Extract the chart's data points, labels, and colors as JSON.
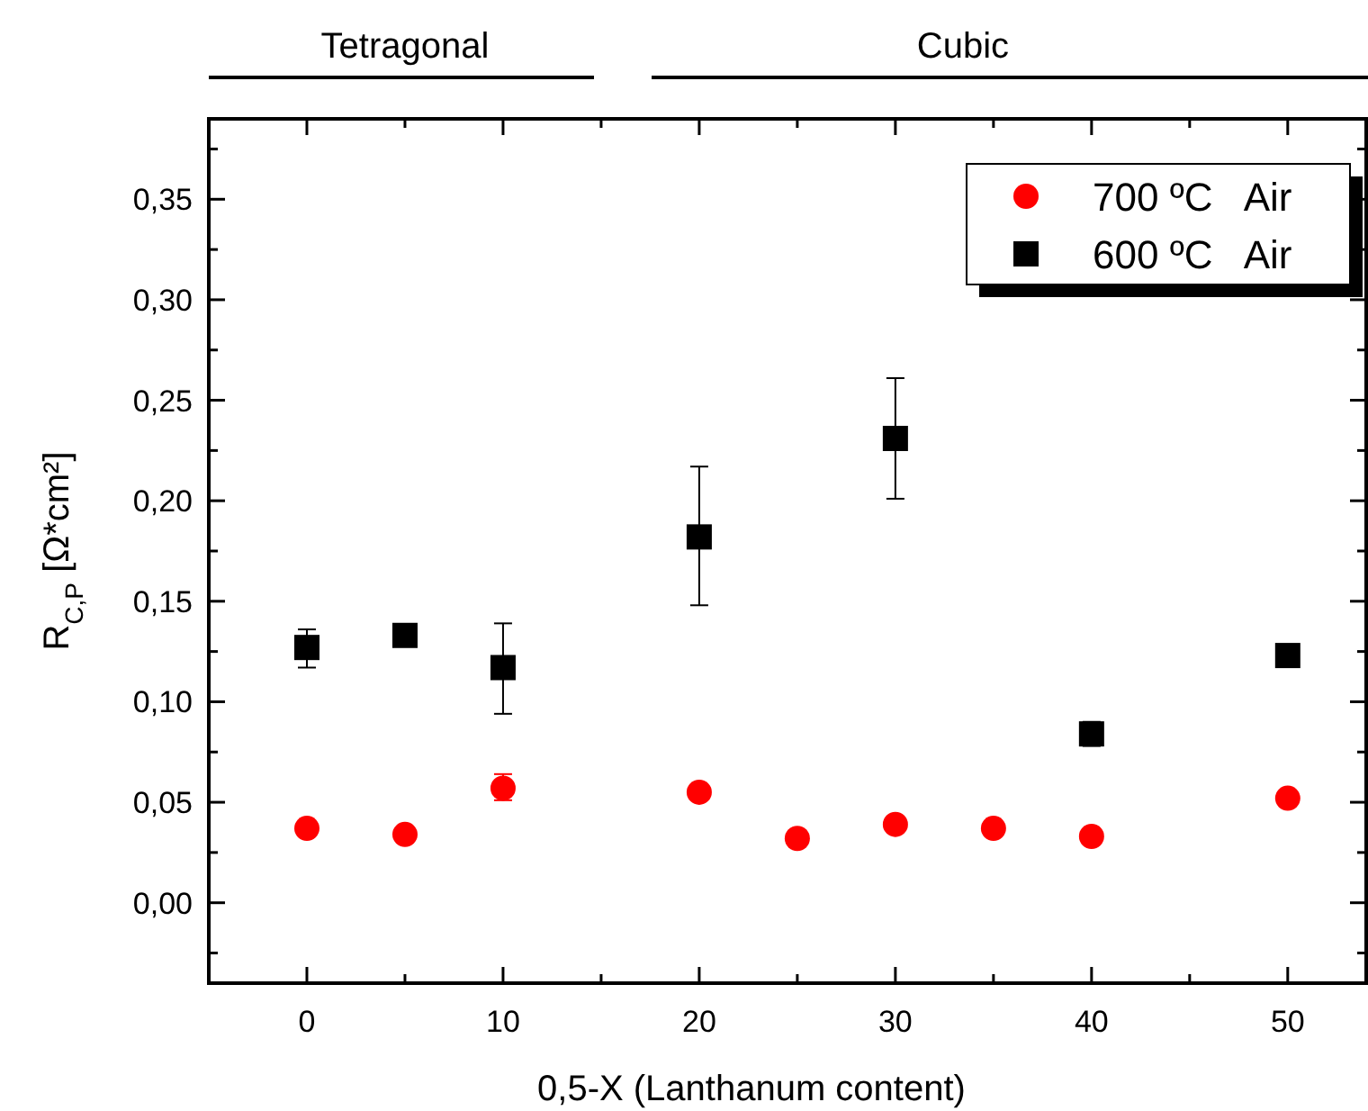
{
  "chart_data": {
    "type": "scatter",
    "xlabel": "0,5-X (Lanthanum content)",
    "ylabel": "R$_{C,P}$ [Ω*cm²]",
    "annotations": [
      "Tetragonal",
      "Cubic"
    ],
    "xlim": [
      -5,
      54
    ],
    "xticks": [
      0,
      10,
      20,
      30,
      40,
      50
    ],
    "ylim": [
      -0.04,
      0.39
    ],
    "yticks": [
      {
        "value": 0,
        "label": "0,00"
      },
      {
        "value": 0.05,
        "label": "0,05"
      },
      {
        "value": 0.1,
        "label": "0,10"
      },
      {
        "value": 0.15,
        "label": "0,15"
      },
      {
        "value": 0.2,
        "label": "0,20"
      },
      {
        "value": 0.25,
        "label": "0,25"
      },
      {
        "value": 0.3,
        "label": "0,30"
      },
      {
        "value": 0.35,
        "label": "0,35"
      }
    ],
    "grid": false,
    "legend": "top right",
    "series": [
      {
        "name": "700 ºC   Air",
        "color": "#ff0000",
        "marker": "circle",
        "x": [
          0,
          5,
          10,
          20,
          25,
          30,
          35,
          40,
          50
        ],
        "values": [
          0.037,
          0.034,
          0.057,
          0.055,
          0.032,
          0.039,
          0.037,
          0.033,
          0.052
        ],
        "errors": [
          null,
          null,
          [
            0.051,
            0.064
          ],
          null,
          null,
          null,
          null,
          null,
          null
        ]
      },
      {
        "name": "600 ºC   Air",
        "color": "#000000",
        "marker": "square",
        "x": [
          0,
          5,
          10,
          20,
          30,
          40,
          50
        ],
        "values": [
          0.127,
          0.133,
          0.117,
          0.182,
          0.231,
          0.084,
          0.123
        ],
        "errors": [
          [
            0.117,
            0.136
          ],
          null,
          [
            0.094,
            0.139
          ],
          [
            0.148,
            0.217
          ],
          [
            0.201,
            0.261
          ],
          [
            0.078,
            0.09
          ],
          null
        ]
      }
    ]
  }
}
